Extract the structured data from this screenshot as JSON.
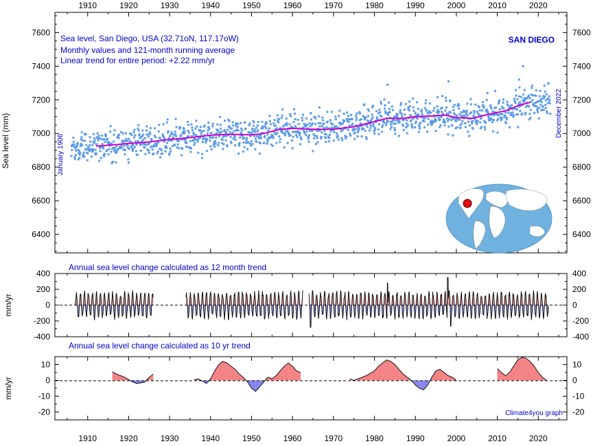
{
  "chart_data": [
    {
      "type": "scatter",
      "panel": "sea-level",
      "title_lines": [
        "Sea level, San Diego, USA (32.71oN, 117.17oW)",
        "Monthly values and 121-month running average",
        "Linear trend for entire period: +2.22 mm/yr"
      ],
      "station": "SAN DIEGO",
      "ylabel": "Sea level (mm)",
      "left_note": "January 1906",
      "right_note": "December 2022",
      "xlim": [
        1902,
        2027
      ],
      "ylim": [
        6290,
        7720
      ],
      "y_ticks": [
        6400,
        6600,
        6800,
        7000,
        7200,
        7400,
        7600
      ],
      "x_ticks": [
        1910,
        1920,
        1930,
        1940,
        1950,
        1960,
        1970,
        1980,
        1990,
        2000,
        2010,
        2020
      ],
      "colors": {
        "monthly": "#5b9be6",
        "running_average": "#cc00cc",
        "trend": "#0000cc"
      },
      "monthly_summary": {
        "start": 1906.0,
        "end": 2022.99,
        "level_1906": 6905,
        "level_2022": 7185,
        "spread_mm": 70
      },
      "running_average": [
        {
          "x": 1912,
          "y": 6925
        },
        {
          "x": 1915,
          "y": 6930
        },
        {
          "x": 1920,
          "y": 6940
        },
        {
          "x": 1925,
          "y": 6950
        },
        {
          "x": 1930,
          "y": 6965
        },
        {
          "x": 1935,
          "y": 6975
        },
        {
          "x": 1940,
          "y": 6990
        },
        {
          "x": 1945,
          "y": 6995
        },
        {
          "x": 1950,
          "y": 6992
        },
        {
          "x": 1953,
          "y": 7000
        },
        {
          "x": 1957,
          "y": 7025
        },
        {
          "x": 1960,
          "y": 7030
        },
        {
          "x": 1965,
          "y": 7025
        },
        {
          "x": 1970,
          "y": 7025
        },
        {
          "x": 1975,
          "y": 7040
        },
        {
          "x": 1980,
          "y": 7070
        },
        {
          "x": 1983,
          "y": 7090
        },
        {
          "x": 1987,
          "y": 7090
        },
        {
          "x": 1990,
          "y": 7100
        },
        {
          "x": 1995,
          "y": 7105
        },
        {
          "x": 1997,
          "y": 7110
        },
        {
          "x": 2000,
          "y": 7095
        },
        {
          "x": 2004,
          "y": 7090
        },
        {
          "x": 2008,
          "y": 7115
        },
        {
          "x": 2012,
          "y": 7135
        },
        {
          "x": 2015,
          "y": 7165
        },
        {
          "x": 2018,
          "y": 7185
        }
      ],
      "spikes": [
        {
          "x": 1983.2,
          "y": 7290
        },
        {
          "x": 1998.1,
          "y": 7310
        },
        {
          "x": 2015.3,
          "y": 7320
        },
        {
          "x": 2016.3,
          "y": 7400
        }
      ]
    },
    {
      "type": "area",
      "panel": "12-month-trend",
      "title": "Annual sea level change calculated as 12 month trend",
      "ylabel": "mm/yr",
      "ylim": [
        -400,
        400
      ],
      "y_ticks": [
        -400,
        -200,
        0,
        200,
        400
      ],
      "colors": {
        "positive": "#cc2222",
        "negative": "#2233cc"
      },
      "segments": [
        [
          1907,
          1926
        ],
        [
          1934,
          1962.5
        ],
        [
          1964,
          2022.5
        ]
      ],
      "amplitude": 160,
      "peaks": [
        {
          "x": 1983.2,
          "y": 280
        },
        {
          "x": 1997.9,
          "y": 350
        },
        {
          "x": 1998.6,
          "y": -270
        },
        {
          "x": 1964.4,
          "y": -280
        }
      ]
    },
    {
      "type": "area",
      "panel": "10-yr-trend",
      "title": "Annual sea level change calculated as 10 yr trend",
      "ylabel": "mm/yr",
      "credit": "Climate4you graph",
      "ylim": [
        -25,
        15
      ],
      "y_ticks": [
        -20,
        -10,
        0,
        10
      ],
      "colors": {
        "positive": "#e8080c",
        "negative": "#1010e0"
      },
      "series": [
        {
          "name": "",
          "points": [
            [
              1916,
              5.5
            ],
            [
              1917,
              4
            ],
            [
              1918,
              3
            ],
            [
              1919,
              2
            ],
            [
              1920,
              0.5
            ],
            [
              1921,
              -1
            ],
            [
              1922,
              -2
            ],
            [
              1923,
              -1.5
            ],
            [
              1924,
              -1
            ],
            [
              1925,
              2
            ],
            [
              1926,
              4
            ]
          ]
        },
        {
          "name": "",
          "points": [
            [
              1936,
              0.5
            ],
            [
              1937,
              1
            ],
            [
              1938,
              -0.5
            ],
            [
              1939,
              -2
            ],
            [
              1940,
              1
            ],
            [
              1941,
              6
            ],
            [
              1942,
              10
            ],
            [
              1943,
              12
            ],
            [
              1944,
              11
            ],
            [
              1945,
              9
            ],
            [
              1946,
              7
            ],
            [
              1947,
              4
            ],
            [
              1948,
              2
            ],
            [
              1949,
              -1
            ],
            [
              1950,
              -5
            ],
            [
              1951,
              -7
            ],
            [
              1952,
              -4
            ],
            [
              1953,
              -1
            ],
            [
              1954,
              2
            ],
            [
              1955,
              1
            ],
            [
              1956,
              3
            ],
            [
              1957,
              6
            ],
            [
              1958,
              9
            ],
            [
              1959,
              11
            ],
            [
              1960,
              9
            ],
            [
              1961,
              6
            ],
            [
              1962,
              5
            ]
          ]
        },
        {
          "name": "",
          "points": [
            [
              1974,
              1
            ],
            [
              1975,
              0
            ],
            [
              1976,
              1
            ],
            [
              1977,
              2
            ],
            [
              1978,
              3
            ],
            [
              1979,
              4.5
            ],
            [
              1980,
              6
            ],
            [
              1981,
              9
            ],
            [
              1982,
              11
            ],
            [
              1983,
              13
            ],
            [
              1984,
              12
            ],
            [
              1985,
              10
            ],
            [
              1986,
              7
            ],
            [
              1987,
              4
            ],
            [
              1988,
              2
            ],
            [
              1989,
              0
            ],
            [
              1990,
              -3
            ],
            [
              1991,
              -5
            ],
            [
              1992,
              -6
            ],
            [
              1993,
              -3
            ],
            [
              1994,
              2
            ],
            [
              1995,
              6
            ],
            [
              1996,
              7
            ],
            [
              1997,
              5
            ],
            [
              1998,
              3
            ],
            [
              1999,
              2
            ],
            [
              2000,
              0
            ]
          ]
        },
        {
          "name": "",
          "points": [
            [
              2010,
              7.5
            ],
            [
              2011,
              5
            ],
            [
              2012,
              3
            ],
            [
              2013,
              5
            ],
            [
              2014,
              9
            ],
            [
              2015,
              13
            ],
            [
              2016,
              14.5
            ],
            [
              2017,
              14
            ],
            [
              2018,
              12
            ],
            [
              2019,
              9
            ],
            [
              2020,
              5
            ],
            [
              2021,
              2
            ],
            [
              2022,
              0
            ]
          ]
        }
      ]
    }
  ]
}
